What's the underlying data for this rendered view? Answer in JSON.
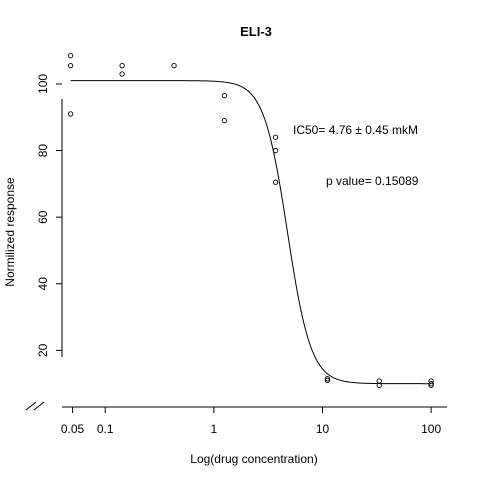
{
  "chart_data": {
    "type": "scatter",
    "title": "ELI-3",
    "xlabel": "Log(drug concentration)",
    "ylabel": "Normilized response",
    "x_scale": "log",
    "xlim": [
      0.04,
      140
    ],
    "ylim": [
      3,
      112
    ],
    "x_ticks": [
      0.05,
      0.1,
      1,
      10,
      100
    ],
    "x_tick_labels": [
      "0.05",
      "0.1",
      "1",
      "10",
      "100"
    ],
    "y_ticks": [
      20,
      40,
      60,
      80,
      100
    ],
    "y_tick_labels": [
      "20",
      "40",
      "60",
      "80",
      "100"
    ],
    "grid": false,
    "axis_break": true,
    "annotations": [
      {
        "text": "IC50= 4.76 ± 0.45 mkM",
        "x": 10.8,
        "y": 90
      },
      {
        "text": "p value= 0.15089",
        "x": 20,
        "y": 74
      }
    ],
    "series": [
      {
        "points": [
          {
            "x": 0.048,
            "y": 108.5
          },
          {
            "x": 0.048,
            "y": 105.5
          },
          {
            "x": 0.048,
            "y": 91
          },
          {
            "x": 0.143,
            "y": 105.5
          },
          {
            "x": 0.143,
            "y": 103
          },
          {
            "x": 0.43,
            "y": 105.5
          },
          {
            "x": 1.25,
            "y": 96.5
          },
          {
            "x": 1.25,
            "y": 89
          },
          {
            "x": 3.7,
            "y": 84
          },
          {
            "x": 3.7,
            "y": 80
          },
          {
            "x": 3.7,
            "y": 70.5
          },
          {
            "x": 11.1,
            "y": 11.5
          },
          {
            "x": 11.1,
            "y": 11
          },
          {
            "x": 33.3,
            "y": 10.8
          },
          {
            "x": 33.3,
            "y": 9.5
          },
          {
            "x": 100,
            "y": 10.8
          },
          {
            "x": 100,
            "y": 10
          },
          {
            "x": 100,
            "y": 9.5
          }
        ]
      }
    ],
    "fit_curve": {
      "model": "4PL",
      "top": 101,
      "bottom": 10,
      "ic50": 4.76,
      "hill": 4
    }
  }
}
